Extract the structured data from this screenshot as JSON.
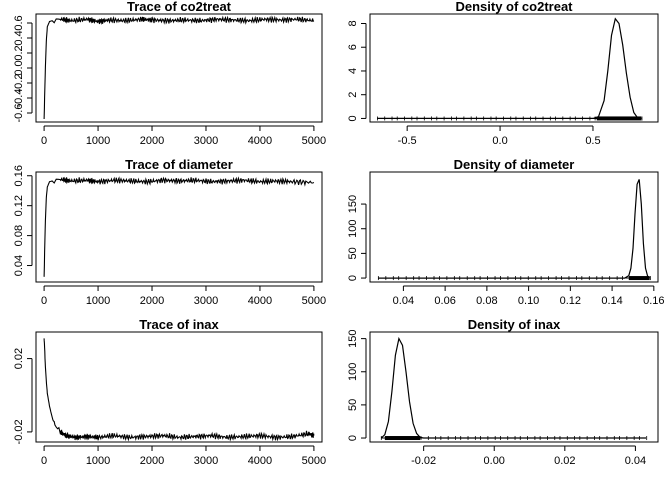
{
  "figure": {
    "background": "#ffffff",
    "line_color": "#000000"
  },
  "chart_data": [
    {
      "id": "trace-co2treat",
      "type": "line",
      "title": "Trace of co2treat",
      "xlim": [
        -150,
        5150
      ],
      "ylim": [
        -0.72,
        0.72
      ],
      "xticks": [
        0,
        1000,
        2000,
        3000,
        4000,
        5000
      ],
      "yticks": [
        -0.6,
        -0.4,
        -0.2,
        0.0,
        0.2,
        0.4,
        0.6
      ],
      "ytick_labels": [
        "-0.6",
        "-0.4",
        "-0.2",
        "0.0",
        "0.2",
        "0.4",
        "0.6"
      ],
      "series": [
        {
          "x": [
            0,
            20,
            40,
            60,
            100,
            150,
            300,
            500,
            800,
            1000,
            1200,
            1500,
            1800,
            2000,
            2300,
            2600,
            2900,
            3200,
            3500,
            3800,
            4100,
            4400,
            4700,
            5000
          ],
          "y": [
            -0.68,
            -0.1,
            0.35,
            0.55,
            0.62,
            0.63,
            0.65,
            0.63,
            0.65,
            0.62,
            0.64,
            0.63,
            0.65,
            0.64,
            0.63,
            0.64,
            0.63,
            0.65,
            0.64,
            0.63,
            0.65,
            0.64,
            0.65,
            0.63
          ]
        }
      ]
    },
    {
      "id": "density-co2treat",
      "type": "area",
      "title": "Density of co2treat",
      "xlim": [
        -0.7,
        0.85
      ],
      "ylim": [
        -0.3,
        8.8
      ],
      "xticks": [
        -0.5,
        0.0,
        0.5
      ],
      "xtick_labels": [
        "-0.5",
        "0.0",
        "0.5"
      ],
      "yticks": [
        0,
        2,
        4,
        6,
        8
      ],
      "rug_range": [
        -0.66,
        0.76
      ],
      "rug_dense_range": [
        0.52,
        0.76
      ],
      "series": [
        {
          "x": [
            -0.66,
            0.5,
            0.53,
            0.56,
            0.58,
            0.6,
            0.62,
            0.64,
            0.66,
            0.68,
            0.7,
            0.72,
            0.74,
            0.76
          ],
          "y": [
            0,
            0,
            0.15,
            1.5,
            4.0,
            7.0,
            8.4,
            8.0,
            6.2,
            3.8,
            1.8,
            0.5,
            0.05,
            0
          ]
        }
      ]
    },
    {
      "id": "trace-diameter",
      "type": "line",
      "title": "Trace of diameter",
      "xlim": [
        -150,
        5150
      ],
      "ylim": [
        0.018,
        0.165
      ],
      "xticks": [
        0,
        1000,
        2000,
        3000,
        4000,
        5000
      ],
      "yticks": [
        0.04,
        0.08,
        0.12,
        0.16
      ],
      "ytick_labels": [
        "0.04",
        "0.08",
        "0.12",
        "0.16"
      ],
      "series": [
        {
          "x": [
            0,
            20,
            40,
            60,
            100,
            150,
            300,
            500,
            800,
            1000,
            1300,
            1600,
            1900,
            2200,
            2500,
            2800,
            3100,
            3400,
            3700,
            4000,
            4300,
            4600,
            5000
          ],
          "y": [
            0.025,
            0.09,
            0.13,
            0.145,
            0.152,
            0.153,
            0.155,
            0.153,
            0.154,
            0.152,
            0.154,
            0.153,
            0.152,
            0.154,
            0.153,
            0.154,
            0.152,
            0.153,
            0.154,
            0.152,
            0.153,
            0.152,
            0.151
          ]
        }
      ]
    },
    {
      "id": "density-diameter",
      "type": "area",
      "title": "Density of diameter",
      "xlim": [
        0.024,
        0.162
      ],
      "ylim": [
        -8,
        215
      ],
      "xticks": [
        0.04,
        0.06,
        0.08,
        0.1,
        0.12,
        0.14,
        0.16
      ],
      "xtick_labels": [
        "0.04",
        "0.06",
        "0.08",
        "0.10",
        "0.12",
        "0.14",
        "0.16"
      ],
      "yticks": [
        0,
        50,
        100,
        150
      ],
      "rug_range": [
        0.028,
        0.158
      ],
      "rug_dense_range": [
        0.148,
        0.158
      ],
      "series": [
        {
          "x": [
            0.028,
            0.146,
            0.148,
            0.149,
            0.15,
            0.151,
            0.152,
            0.153,
            0.154,
            0.155,
            0.156,
            0.157,
            0.158
          ],
          "y": [
            0,
            0,
            5,
            20,
            60,
            130,
            190,
            200,
            150,
            70,
            20,
            4,
            0
          ]
        }
      ]
    },
    {
      "id": "trace-inax",
      "type": "line",
      "title": "Trace of inax",
      "xlim": [
        -150,
        5150
      ],
      "ylim": [
        -0.0255,
        0.0345
      ],
      "xticks": [
        0,
        1000,
        2000,
        3000,
        4000,
        5000
      ],
      "yticks": [
        -0.02,
        0.02
      ],
      "ytick_labels": [
        "-0.02",
        "0.02"
      ],
      "series": [
        {
          "x": [
            0,
            10,
            20,
            40,
            60,
            100,
            150,
            200,
            300,
            400,
            600,
            800,
            1000,
            1300,
            1600,
            1900,
            2200,
            2500,
            2800,
            3100,
            3400,
            3700,
            4000,
            4300,
            4600,
            4900,
            5000
          ],
          "y": [
            0.031,
            0.026,
            0.018,
            0.008,
            0.001,
            -0.006,
            -0.012,
            -0.016,
            -0.02,
            -0.022,
            -0.023,
            -0.0225,
            -0.023,
            -0.022,
            -0.023,
            -0.0225,
            -0.022,
            -0.023,
            -0.0225,
            -0.022,
            -0.023,
            -0.0225,
            -0.022,
            -0.023,
            -0.0225,
            -0.021,
            -0.022
          ]
        }
      ]
    },
    {
      "id": "density-inax",
      "type": "area",
      "title": "Density of inax",
      "xlim": [
        -0.0352,
        0.0464
      ],
      "ylim": [
        -6,
        160
      ],
      "xticks": [
        -0.02,
        0.0,
        0.02,
        0.04
      ],
      "xtick_labels": [
        "-0.02",
        "0.00",
        "0.02",
        "0.04"
      ],
      "yticks": [
        0,
        50,
        100,
        150
      ],
      "rug_range": [
        -0.032,
        0.043
      ],
      "rug_dense_range": [
        -0.031,
        -0.021
      ],
      "series": [
        {
          "x": [
            -0.032,
            -0.031,
            -0.03,
            -0.029,
            -0.028,
            -0.027,
            -0.026,
            -0.025,
            -0.024,
            -0.023,
            -0.022,
            -0.021,
            -0.02,
            0.043
          ],
          "y": [
            0,
            5,
            25,
            70,
            125,
            150,
            140,
            100,
            55,
            22,
            7,
            1,
            0,
            0
          ]
        }
      ]
    }
  ]
}
